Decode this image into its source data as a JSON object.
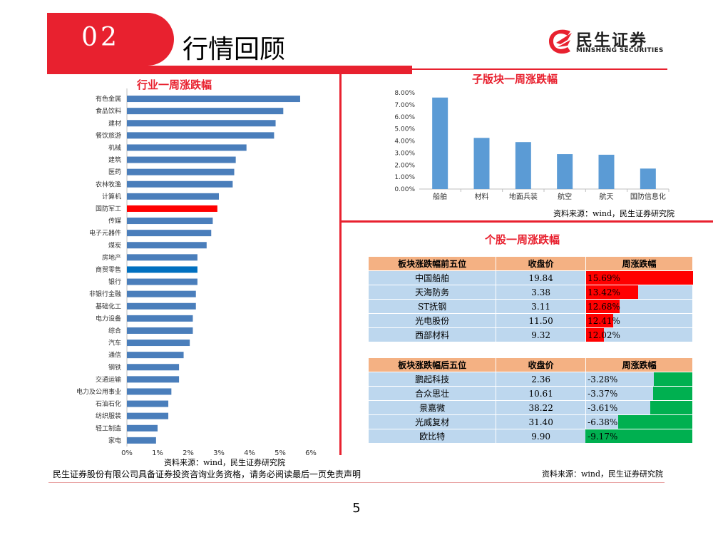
{
  "header": {
    "section_number": "02",
    "title": "行情回顾"
  },
  "logo": {
    "name_cn": "民生证券",
    "name_en": "MINSHENG SECURITIES"
  },
  "left_chart_title": "行业一周涨跌幅",
  "right_top_title": "子版块一周涨跌幅",
  "right_bottom_title": "个股一周涨跌幅",
  "source_text": "资料来源：wind，民生证券研究院",
  "colors": {
    "red": "#e8212f",
    "bar_blue": "#4a7ebb",
    "highlight_red": "#ff0000",
    "highlight_blue": "#0070c0",
    "sub_bar": "#5b9bd5",
    "table_head": "#f4b183",
    "table_row": "#bdd7ee",
    "neg_green": "#00b050"
  },
  "chart_data": [
    {
      "type": "bar",
      "orientation": "horizontal",
      "title": "行业一周涨跌幅",
      "categories": [
        "有色金属",
        "食品饮料",
        "建材",
        "餐饮旅游",
        "机械",
        "建筑",
        "医药",
        "农林牧渔",
        "计算机",
        "国防军工",
        "传媒",
        "电子元器件",
        "煤炭",
        "房地产",
        "商贸零售",
        "银行",
        "非银行金融",
        "基础化工",
        "电力设备",
        "综合",
        "汽车",
        "通信",
        "钢铁",
        "交通运输",
        "电力及公用事业",
        "石油石化",
        "纺织服装",
        "轻工制造",
        "家电"
      ],
      "values": [
        5.65,
        5.1,
        4.85,
        4.8,
        3.9,
        3.55,
        3.5,
        3.45,
        3.0,
        2.95,
        2.8,
        2.75,
        2.6,
        2.3,
        2.3,
        2.3,
        2.25,
        2.25,
        2.15,
        2.15,
        2.05,
        1.85,
        1.7,
        1.7,
        1.45,
        1.35,
        1.35,
        1.0,
        0.95
      ],
      "highlight": {
        "国防军工": "red",
        "商贸零售": "blue"
      },
      "xlim": [
        0,
        6
      ],
      "xticks": [
        "0%",
        "1%",
        "2%",
        "3%",
        "4%",
        "5%",
        "6%"
      ]
    },
    {
      "type": "bar",
      "title": "子版块一周涨跌幅",
      "categories": [
        "船舶",
        "材料",
        "地面兵装",
        "航空",
        "航天",
        "国防信息化"
      ],
      "values": [
        7.6,
        4.25,
        3.9,
        2.9,
        2.85,
        1.7
      ],
      "ylim": [
        0,
        8
      ],
      "yticks": [
        "0.00%",
        "1.00%",
        "2.00%",
        "3.00%",
        "4.00%",
        "5.00%",
        "6.00%",
        "7.00%",
        "8.00%"
      ]
    }
  ],
  "top_table": {
    "headers": [
      "板块涨跌幅前五位",
      "收盘价",
      "周涨跌幅"
    ],
    "rows": [
      {
        "name": "中国船舶",
        "price": "19.84",
        "change": "15.69%",
        "pct": 15.69
      },
      {
        "name": "天海防务",
        "price": "3.38",
        "change": "13.42%",
        "pct": 13.42
      },
      {
        "name": "ST抚钢",
        "price": "3.11",
        "change": "12.68%",
        "pct": 12.68
      },
      {
        "name": "光电股份",
        "price": "11.50",
        "change": "12.41%",
        "pct": 12.41
      },
      {
        "name": "西部材料",
        "price": "9.32",
        "change": "12.02%",
        "pct": 12.02
      }
    ]
  },
  "bottom_table": {
    "headers": [
      "板块涨跌幅后五位",
      "收盘价",
      "周涨跌幅"
    ],
    "rows": [
      {
        "name": "鹏起科技",
        "price": "2.36",
        "change": "-3.28%",
        "pct": -3.28
      },
      {
        "name": "合众思壮",
        "price": "10.61",
        "change": "-3.37%",
        "pct": -3.37
      },
      {
        "name": "景嘉微",
        "price": "38.22",
        "change": "-3.61%",
        "pct": -3.61
      },
      {
        "name": "光威复材",
        "price": "31.40",
        "change": "-6.38%",
        "pct": -6.38
      },
      {
        "name": "欧比特",
        "price": "9.90",
        "change": "-9.17%",
        "pct": -9.17
      }
    ]
  },
  "footer": {
    "disclaimer": "民生证券股份有限公司具备证券投资咨询业务资格，请务必阅读最后一页免责声明",
    "page": "5"
  }
}
